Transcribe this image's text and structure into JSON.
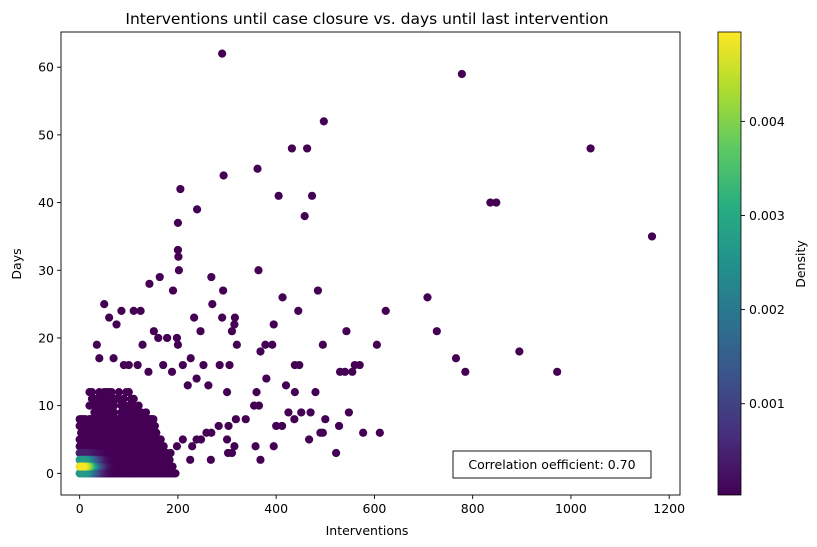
{
  "chart_data": {
    "type": "scatter",
    "title": "Interventions until case closure vs. days until last intervention",
    "xlabel": "Interventions",
    "ylabel": "Days",
    "xlim": [
      -38,
      1222
    ],
    "ylim": [
      -3.2,
      65.2
    ],
    "x_ticks": [
      0,
      200,
      400,
      600,
      800,
      1000,
      1200
    ],
    "y_ticks": [
      0,
      10,
      20,
      30,
      40,
      50,
      60
    ],
    "grid": false,
    "colorbar": {
      "label": "Density",
      "colormap": "viridis",
      "range": [
        3e-05,
        0.00495
      ],
      "ticks": [
        0.001,
        0.002,
        0.003,
        0.004
      ],
      "tick_labels": [
        "0.001",
        "0.002",
        "0.003",
        "0.004"
      ]
    },
    "annotation": {
      "text": "Correlation oefficient: 0.70",
      "placement": "bottom-right"
    },
    "dense_cluster": {
      "x_range": [
        0,
        170
      ],
      "y_range": [
        0,
        8
      ],
      "peak_x": 5,
      "peak_y": 1,
      "peak_density": 0.0049
    },
    "points": [
      [
        290,
        62
      ],
      [
        778,
        59
      ],
      [
        497,
        52
      ],
      [
        432,
        48
      ],
      [
        463,
        48
      ],
      [
        1040,
        48
      ],
      [
        362,
        45
      ],
      [
        293,
        44
      ],
      [
        473,
        41
      ],
      [
        405,
        41
      ],
      [
        836,
        40
      ],
      [
        848,
        40
      ],
      [
        205,
        42
      ],
      [
        239,
        39
      ],
      [
        458,
        38
      ],
      [
        200,
        37
      ],
      [
        1165,
        35
      ],
      [
        200,
        33
      ],
      [
        201,
        32
      ],
      [
        202,
        30
      ],
      [
        364,
        30
      ],
      [
        268,
        29
      ],
      [
        163,
        29
      ],
      [
        485,
        27
      ],
      [
        190,
        27
      ],
      [
        292,
        27
      ],
      [
        708,
        26
      ],
      [
        270,
        25
      ],
      [
        413,
        26
      ],
      [
        142,
        28
      ],
      [
        50,
        25
      ],
      [
        316,
        23
      ],
      [
        85,
        24
      ],
      [
        233,
        23
      ],
      [
        623,
        24
      ],
      [
        445,
        24
      ],
      [
        727,
        21
      ],
      [
        290,
        23
      ],
      [
        315,
        22
      ],
      [
        395,
        22
      ],
      [
        124,
        24
      ],
      [
        110,
        24
      ],
      [
        310,
        21
      ],
      [
        543,
        21
      ],
      [
        246,
        21
      ],
      [
        60,
        23
      ],
      [
        75,
        22
      ],
      [
        151,
        21
      ],
      [
        128,
        19
      ],
      [
        160,
        20
      ],
      [
        178,
        20
      ],
      [
        198,
        20
      ],
      [
        200,
        19
      ],
      [
        320,
        19
      ],
      [
        368,
        18
      ],
      [
        378,
        19
      ],
      [
        392,
        19
      ],
      [
        495,
        19
      ],
      [
        605,
        19
      ],
      [
        895,
        18
      ],
      [
        766,
        17
      ],
      [
        226,
        17
      ],
      [
        252,
        16
      ],
      [
        285,
        16
      ],
      [
        305,
        16
      ],
      [
        438,
        16
      ],
      [
        447,
        16
      ],
      [
        560,
        16
      ],
      [
        570,
        16
      ],
      [
        555,
        15
      ],
      [
        530,
        15
      ],
      [
        540,
        15
      ],
      [
        785,
        15
      ],
      [
        972,
        15
      ],
      [
        35,
        19
      ],
      [
        40,
        17
      ],
      [
        69,
        17
      ],
      [
        90,
        16
      ],
      [
        100,
        16
      ],
      [
        118,
        16
      ],
      [
        140,
        15
      ],
      [
        170,
        16
      ],
      [
        188,
        15
      ],
      [
        210,
        16
      ],
      [
        380,
        14
      ],
      [
        420,
        13
      ],
      [
        438,
        12
      ],
      [
        480,
        12
      ],
      [
        360,
        12
      ],
      [
        300,
        12
      ],
      [
        262,
        13
      ],
      [
        238,
        14
      ],
      [
        220,
        13
      ],
      [
        365,
        10
      ],
      [
        425,
        9
      ],
      [
        451,
        9
      ],
      [
        470,
        9
      ],
      [
        500,
        8
      ],
      [
        548,
        9
      ],
      [
        577,
        6
      ],
      [
        611,
        6
      ],
      [
        355,
        10
      ],
      [
        338,
        8
      ],
      [
        318,
        8
      ],
      [
        303,
        7
      ],
      [
        283,
        7
      ],
      [
        268,
        6
      ],
      [
        258,
        6
      ],
      [
        247,
        5
      ],
      [
        238,
        5
      ],
      [
        229,
        4
      ],
      [
        210,
        5
      ],
      [
        198,
        4
      ],
      [
        185,
        3
      ],
      [
        175,
        3
      ],
      [
        165,
        2
      ],
      [
        152,
        2
      ],
      [
        267,
        2
      ],
      [
        225,
        2
      ],
      [
        184,
        1
      ],
      [
        302,
        3
      ],
      [
        315,
        4
      ],
      [
        358,
        4
      ],
      [
        368,
        2
      ],
      [
        395,
        4
      ],
      [
        400,
        7
      ],
      [
        412,
        7
      ],
      [
        437,
        8
      ],
      [
        467,
        5
      ],
      [
        490,
        6
      ],
      [
        522,
        3
      ],
      [
        528,
        7
      ],
      [
        495,
        6
      ],
      [
        310,
        3
      ],
      [
        300,
        5
      ]
    ]
  }
}
